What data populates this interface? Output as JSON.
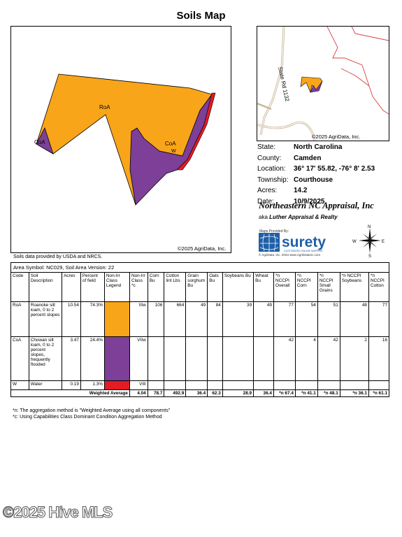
{
  "title": "Soils Map",
  "main_map": {
    "labels": [
      "RoA",
      "CoA",
      "CoA",
      "W"
    ],
    "copyright": "©2025 AgriData, Inc."
  },
  "inset_map": {
    "road_label": "State Rd 1132",
    "copyright": "©2025 AgriData, Inc."
  },
  "info": [
    {
      "key": "State:",
      "value": "North Carolina"
    },
    {
      "key": "County:",
      "value": "Camden"
    },
    {
      "key": "Location:",
      "value": "36° 17' 55.82,  -76° 8' 2.53"
    },
    {
      "key": "Township:",
      "value": "Courthouse"
    },
    {
      "key": "Acres:",
      "value": "14.2"
    },
    {
      "key": "Date:",
      "value": "10/9/2025"
    }
  ],
  "company": "Northeastern NC Appraisal, Inc",
  "aka_prefix": "aka",
  "aka_name": "Luther Appraisal & Realty",
  "maps_provided_by": "Maps Provided By:",
  "surety_name": "surety",
  "surety_tagline": "CUSTOMIZED ONLINE MAPPING",
  "surety_copy": "© AgriData, Inc. 2023          www.AgriDataInc.com",
  "compass": {
    "n": "N",
    "s": "S",
    "e": "E",
    "w": "W"
  },
  "source_note": "Soils data provided by USDA and NRCS.",
  "area_symbol": "Area Symbol: NC029, Soil Area Version: 22",
  "headers": [
    "Code",
    "Soil Description",
    "Acres",
    "Percent of field",
    "Non-Irr Class Legend",
    "Non-Irr Class *c",
    "Corn Bu",
    "Cotton lint Lbs",
    "Grain sorghum Bu",
    "Oats Bu",
    "Soybeans Bu",
    "Wheat Bu",
    "*n NCCPI Overall",
    "*n NCCPI Corn",
    "*n NCCPI Small Grains",
    "*n NCCPI Soybeans",
    "*n NCCPI Cotton"
  ],
  "rows": [
    {
      "code": "RoA",
      "desc": "Roanoke silt loam, 0 to 2 percent slopes",
      "acres": "10.54",
      "pct": "74.3%",
      "color": "#f9a51a",
      "cls": "IIIw",
      "corn": "106",
      "cotton": "664",
      "sorghum": "49",
      "oats": "84",
      "soy": "39",
      "wheat": "49",
      "overall": "77",
      "nccorn": "54",
      "small": "51",
      "ncsoy": "48",
      "nccotton": "77"
    },
    {
      "code": "CoA",
      "desc": "Chowan silt loam, 0 to 2 percent slopes, frequently flooded",
      "acres": "3.47",
      "pct": "24.4%",
      "color": "#7d3f98",
      "cls": "VIIw",
      "corn": "",
      "cotton": "",
      "sorghum": "",
      "oats": "",
      "soy": "",
      "wheat": "",
      "overall": "42",
      "nccorn": "4",
      "small": "42",
      "ncsoy": "2",
      "nccotton": "16"
    },
    {
      "code": "W",
      "desc": "Water",
      "acres": "0.19",
      "pct": "1.3%",
      "color": "#e31b23",
      "cls": "VIII",
      "corn": "",
      "cotton": "",
      "sorghum": "",
      "oats": "",
      "soy": "",
      "wheat": "",
      "overall": "",
      "nccorn": "",
      "small": "",
      "ncsoy": "",
      "nccotton": ""
    }
  ],
  "weighted": {
    "label": "Weighted Average",
    "cls": "4.04",
    "corn": "78.7",
    "cotton": "492.9",
    "sorghum": "36.4",
    "oats": "62.3",
    "soy": "28.9",
    "wheat": "36.4",
    "overall": "*n 67.4",
    "nccorn": "*n 41.1",
    "small": "*n 48.1",
    "ncsoy": "*n 36.1",
    "nccotton": "*n 61.1"
  },
  "notes": [
    "*n: The aggregation method is \"Weighted Average using all components\"",
    "*c: Using Capabilities Class Dominant Condition Aggregation Method"
  ],
  "watermark": "©2025 Hive MLS"
}
